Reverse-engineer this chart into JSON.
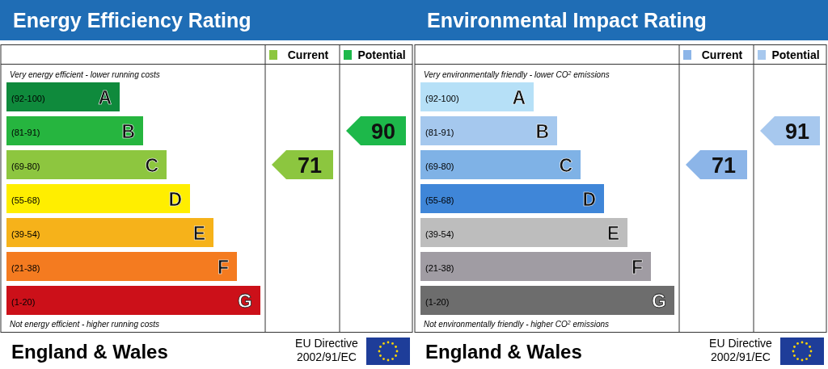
{
  "chart_data": [
    {
      "type": "other",
      "title": "Energy Efficiency Rating",
      "categories": [
        "A",
        "B",
        "C",
        "D",
        "E",
        "F",
        "G"
      ],
      "value_labels": [
        "(92-100)",
        "(81-91)",
        "(69-80)",
        "(55-68)",
        "(39-54)",
        "(21-38)",
        "(1-20)"
      ],
      "colors": [
        "#0f8a3c",
        "#26b53f",
        "#8dc63f",
        "#ffee00",
        "#f6b21a",
        "#f47b20",
        "#cc1019"
      ],
      "series": [
        {
          "name": "Current",
          "color": "#8cc63f",
          "values": [
            null,
            null,
            71,
            null,
            null,
            null,
            null
          ]
        },
        {
          "name": "Potential",
          "color": "#1db84a",
          "values": [
            null,
            90,
            null,
            null,
            null,
            null,
            null
          ]
        }
      ],
      "data_labels": true,
      "legend": "top right",
      "annotations": [
        "Very energy efficient - lower running costs",
        "Not energy efficient - higher running costs",
        "England & Wales",
        "EU Directive",
        "2002/91/EC"
      ]
    },
    {
      "type": "other",
      "title": "Environmental Impact Rating",
      "categories": [
        "A",
        "B",
        "C",
        "D",
        "E",
        "F",
        "G"
      ],
      "value_labels": [
        "(92-100)",
        "(81-91)",
        "(69-80)",
        "(55-68)",
        "(39-54)",
        "(21-38)",
        "(1-20)"
      ],
      "colors": [
        "#b6e0f7",
        "#a5c8ee",
        "#7fb2e6",
        "#3f86d8",
        "#bdbdbd",
        "#a09ca3",
        "#6d6d6d"
      ],
      "series": [
        {
          "name": "Current",
          "color": "#8cb5e8",
          "values": [
            null,
            null,
            71,
            null,
            null,
            null,
            null
          ]
        },
        {
          "name": "Potential",
          "color": "#a7c8ee",
          "values": [
            null,
            91,
            null,
            null,
            null,
            null,
            null
          ]
        }
      ],
      "data_labels": true,
      "legend": "top right",
      "annotations": [
        "Very environmentally friendly - lower CO$^{2}$ emissions",
        "Not environmentally friendly - higher CO$^{2}$ emissions",
        "England & Wales",
        "EU Directive",
        "2002/91/EC"
      ]
    }
  ]
}
